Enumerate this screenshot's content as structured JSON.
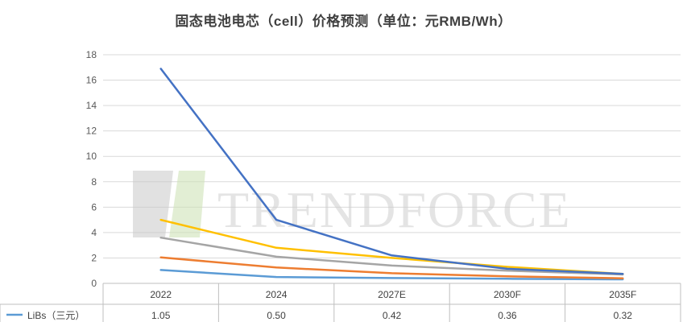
{
  "chart_data": {
    "type": "line",
    "title": "固态电池电芯（cell）价格预测（单位：元RMB/Wh）",
    "categories": [
      "2022",
      "2024",
      "2027E",
      "2030F",
      "2035F"
    ],
    "y_ticks": [
      "0",
      "2",
      "4",
      "6",
      "8",
      "10",
      "12",
      "14",
      "16",
      "18"
    ],
    "ylim": [
      0,
      18
    ],
    "grid": true,
    "series": [
      {
        "name": "LiBs（三元）",
        "color": "#5b9bd5",
        "values": [
          1.05,
          0.5,
          0.42,
          0.36,
          0.32
        ],
        "labels": [
          "1.05",
          "0.50",
          "0.42",
          "0.36",
          "0.32"
        ]
      },
      {
        "color": "#ed7d31",
        "values": [
          2.05,
          1.25,
          0.8,
          0.55,
          0.4
        ]
      },
      {
        "color": "#a5a5a5",
        "values": [
          3.6,
          2.1,
          1.4,
          1.0,
          0.7
        ]
      },
      {
        "color": "#ffc000",
        "values": [
          5.0,
          2.8,
          2.0,
          1.3,
          0.75
        ]
      },
      {
        "color": "#4472c4",
        "values": [
          16.9,
          5.0,
          2.2,
          1.15,
          0.75
        ]
      }
    ],
    "watermark": "TRENDFORCE"
  }
}
